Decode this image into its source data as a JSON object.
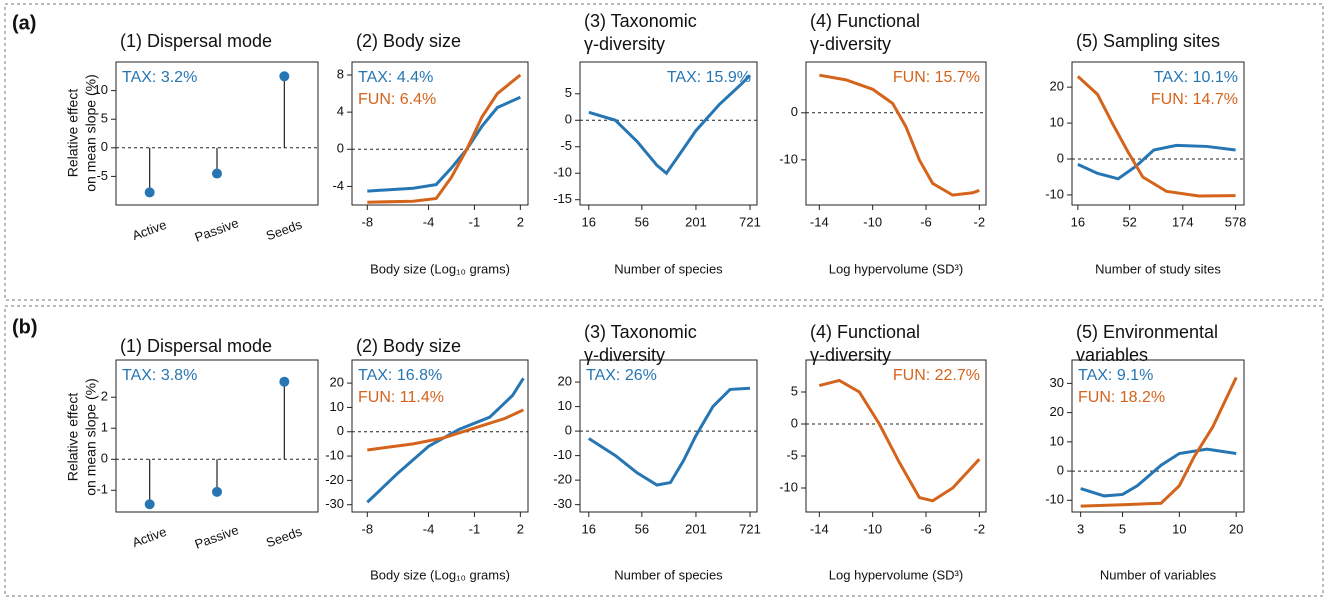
{
  "figure": {
    "panels": [
      "(a)",
      "(b)"
    ],
    "ylabel": [
      "Relative effect",
      "on mean slope (%)"
    ]
  },
  "chart_data": [
    {
      "type": "lollipop",
      "title": [
        "(1) Dispersal mode"
      ],
      "categories": [
        "Active",
        "Passive",
        "Seeds"
      ],
      "values": [
        -7.8,
        -4.5,
        12.5
      ],
      "color": "#2676b4",
      "ylim": [
        -10,
        15
      ],
      "yticks": [
        -5,
        0,
        5,
        10
      ],
      "zero_line": true,
      "annotation_corner": "left",
      "annotations": [
        {
          "text": "TAX: 3.2%",
          "color": "#2676b4"
        }
      ]
    },
    {
      "type": "line",
      "title": [
        "(2) Body size"
      ],
      "xlabel": "Body size (Log₁₀ grams)",
      "xlim": [
        -9,
        2.5
      ],
      "xticks": [
        -8,
        -4,
        -1,
        2
      ],
      "ylim": [
        -6,
        9.4
      ],
      "yticks": [
        -4,
        0,
        4,
        8
      ],
      "zero_line": true,
      "annotation_corner": "left",
      "series": [
        {
          "color": "#2676b4",
          "x": [
            -8,
            -5,
            -3.5,
            -2.5,
            -1.5,
            -0.5,
            0.5,
            2
          ],
          "values": [
            -4.5,
            -4.2,
            -3.8,
            -2,
            0,
            2.5,
            4.5,
            5.6
          ]
        },
        {
          "color": "#d4641c",
          "x": [
            -8,
            -5,
            -3.5,
            -2.5,
            -1.5,
            -0.5,
            0.5,
            2
          ],
          "values": [
            -5.7,
            -5.6,
            -5.3,
            -3,
            0,
            3.5,
            6,
            8
          ]
        }
      ],
      "annotations": [
        {
          "text": "TAX: 4.4%",
          "color": "#2676b4"
        },
        {
          "text": "FUN: 6.4%",
          "color": "#d4641c"
        }
      ]
    },
    {
      "type": "line",
      "title": [
        "(3) Taxonomic",
        "γ-diversity"
      ],
      "xlabel": "Number of species",
      "xscale": "log",
      "xlim": [
        13,
        850
      ],
      "xticks": [
        16,
        56,
        201,
        721
      ],
      "ylim": [
        -16,
        11
      ],
      "yticks": [
        -15,
        -10,
        -5,
        0,
        5
      ],
      "zero_line": true,
      "annotation_corner": "right",
      "series": [
        {
          "color": "#2676b4",
          "x": [
            16,
            30,
            50,
            80,
            100,
            130,
            200,
            350,
            600,
            721
          ],
          "values": [
            1.5,
            0,
            -4,
            -8.5,
            -10,
            -7,
            -2,
            3,
            7,
            8.5
          ]
        }
      ],
      "annotations": [
        {
          "text": "TAX: 15.9%",
          "color": "#2676b4"
        }
      ]
    },
    {
      "type": "line",
      "title": [
        "(4) Functional",
        "γ-diversity"
      ],
      "xlabel": "Log hypervolume (SD³)",
      "xlim": [
        -15,
        -1.5
      ],
      "xticks": [
        -14,
        -10,
        -6,
        -2
      ],
      "ylim": [
        -19.6,
        10.8
      ],
      "yticks": [
        -10,
        0
      ],
      "zero_line": true,
      "annotation_corner": "right",
      "series": [
        {
          "color": "#d4641c",
          "x": [
            -14,
            -12,
            -10,
            -8.5,
            -7.5,
            -6.5,
            -5.5,
            -4,
            -2.5,
            -2
          ],
          "values": [
            8,
            7,
            5,
            2,
            -3,
            -10,
            -15,
            -17.5,
            -17,
            -16.5
          ]
        }
      ],
      "annotations": [
        {
          "text": "FUN: 15.7%",
          "color": "#d4641c"
        }
      ]
    },
    {
      "type": "line",
      "title": [
        "(5) Sampling sites"
      ],
      "xlabel": "Number of study sites",
      "xscale": "log",
      "xlim": [
        14,
        700
      ],
      "xticks": [
        16,
        52,
        174,
        578
      ],
      "ylim": [
        -12.8,
        27
      ],
      "yticks": [
        -10,
        0,
        10,
        20
      ],
      "zero_line": true,
      "annotation_corner": "right",
      "series": [
        {
          "color": "#2676b4",
          "x": [
            16,
            25,
            40,
            60,
            90,
            150,
            300,
            578
          ],
          "values": [
            -1.5,
            -4,
            -5.5,
            -2,
            2.5,
            3.8,
            3.5,
            2.5
          ]
        },
        {
          "color": "#d4641c",
          "x": [
            16,
            25,
            35,
            50,
            70,
            120,
            250,
            578
          ],
          "values": [
            23,
            18,
            10,
            2,
            -5,
            -9,
            -10.3,
            -10.2
          ]
        }
      ],
      "annotations": [
        {
          "text": "TAX: 10.1%",
          "color": "#2676b4"
        },
        {
          "text": "FUN: 14.7%",
          "color": "#d4641c"
        }
      ]
    },
    {
      "type": "lollipop",
      "title": [
        "(1) Dispersal mode"
      ],
      "categories": [
        "Active",
        "Passive",
        "Seeds"
      ],
      "values": [
        -1.45,
        -1.05,
        2.5
      ],
      "color": "#2676b4",
      "ylim": [
        -1.7,
        3.2
      ],
      "yticks": [
        -1,
        0,
        1,
        2
      ],
      "zero_line": true,
      "annotation_corner": "left",
      "annotations": [
        {
          "text": "TAX: 3.8%",
          "color": "#2676b4"
        }
      ]
    },
    {
      "type": "line",
      "title": [
        "(2) Body size"
      ],
      "xlabel": "Body size (Log₁₀ grams)",
      "xlim": [
        -9,
        2.5
      ],
      "xticks": [
        -8,
        -4,
        -1,
        2
      ],
      "ylim": [
        -33,
        29.5
      ],
      "yticks": [
        -30,
        -20,
        -10,
        0,
        10,
        20
      ],
      "zero_line": true,
      "annotation_corner": "left",
      "series": [
        {
          "color": "#2676b4",
          "x": [
            -8,
            -6,
            -4,
            -2,
            0,
            1.5,
            2.2
          ],
          "values": [
            -29,
            -17,
            -6,
            1,
            6,
            15,
            22
          ]
        },
        {
          "color": "#d4641c",
          "x": [
            -8,
            -5,
            -3,
            -1,
            1,
            2.2
          ],
          "values": [
            -7.5,
            -5,
            -2.5,
            1.5,
            5.5,
            9
          ]
        }
      ],
      "annotations": [
        {
          "text": "TAX: 16.8%",
          "color": "#2676b4"
        },
        {
          "text": "FUN: 11.4%",
          "color": "#d4641c"
        }
      ]
    },
    {
      "type": "line",
      "title": [
        "(3) Taxonomic",
        "γ-diversity"
      ],
      "xlabel": "Number of species",
      "xscale": "log",
      "xlim": [
        13,
        850
      ],
      "xticks": [
        16,
        56,
        201,
        721
      ],
      "ylim": [
        -33,
        29
      ],
      "yticks": [
        -30,
        -20,
        -10,
        0,
        10,
        20
      ],
      "zero_line": true,
      "annotation_corner": "left",
      "series": [
        {
          "color": "#2676b4",
          "x": [
            16,
            30,
            50,
            80,
            110,
            150,
            200,
            300,
            450,
            721
          ],
          "values": [
            -3,
            -10,
            -17,
            -22,
            -21,
            -12,
            -2,
            10,
            17,
            17.5
          ]
        }
      ],
      "annotations": [
        {
          "text": "TAX: 26%",
          "color": "#2676b4"
        }
      ]
    },
    {
      "type": "line",
      "title": [
        "(4) Functional",
        "γ-diversity"
      ],
      "xlabel": "Log hypervolume (SD³)",
      "xlim": [
        -15,
        -1.5
      ],
      "xticks": [
        -14,
        -10,
        -6,
        -2
      ],
      "ylim": [
        -13.75,
        10
      ],
      "yticks": [
        -10,
        -5,
        0,
        5
      ],
      "zero_line": true,
      "annotation_corner": "right",
      "series": [
        {
          "color": "#d4641c",
          "x": [
            -14,
            -12.5,
            -11,
            -9.5,
            -8,
            -6.5,
            -5.5,
            -4,
            -2
          ],
          "values": [
            6,
            6.8,
            5,
            0,
            -6,
            -11.5,
            -12,
            -10,
            -5.5
          ]
        }
      ],
      "annotations": [
        {
          "text": "FUN: 22.7%",
          "color": "#d4641c"
        }
      ]
    },
    {
      "type": "line",
      "title": [
        "(5) Environmental",
        "variables"
      ],
      "xlabel": "Number of variables",
      "xscale": "log",
      "xlim": [
        2.7,
        22
      ],
      "xticks": [
        3,
        5,
        10,
        20
      ],
      "ylim": [
        -14,
        38
      ],
      "yticks": [
        -10,
        0,
        10,
        20,
        30
      ],
      "zero_line": true,
      "annotation_corner": "left",
      "series": [
        {
          "color": "#2676b4",
          "x": [
            3,
            4,
            5,
            6,
            8,
            10,
            14,
            20
          ],
          "values": [
            -6,
            -8.5,
            -8,
            -5,
            2,
            6,
            7.5,
            6
          ]
        },
        {
          "color": "#d4641c",
          "x": [
            3,
            5,
            8,
            10,
            12,
            15,
            20
          ],
          "values": [
            -12,
            -11.5,
            -11,
            -5,
            5,
            15,
            32
          ]
        }
      ],
      "annotations": [
        {
          "text": "TAX: 9.1%",
          "color": "#2676b4"
        },
        {
          "text": "FUN: 18.2%",
          "color": "#d4641c"
        }
      ]
    }
  ]
}
